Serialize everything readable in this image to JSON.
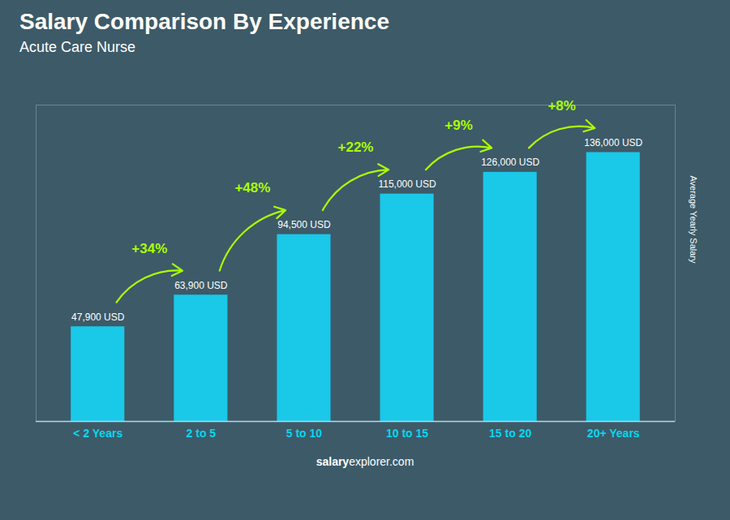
{
  "chart_data": {
    "type": "bar",
    "title": "Salary Comparison By Experience",
    "subtitle": "Acute Care Nurse",
    "categories": [
      "< 2 Years",
      "2 to 5",
      "5 to 10",
      "10 to 15",
      "15 to 20",
      "20+ Years"
    ],
    "values": [
      47900,
      63900,
      94500,
      115000,
      126000,
      136000
    ],
    "value_labels": [
      "47,900 USD",
      "63,900 USD",
      "94,500 USD",
      "115,000 USD",
      "126,000 USD",
      "136,000 USD"
    ],
    "data_labels": true,
    "annotations": [
      "+34%",
      "+48%",
      "+22%",
      "+9%",
      "+8%"
    ],
    "ylabel": "Average Yearly Salary",
    "caption": [
      "salary",
      "explorer.com"
    ],
    "color": "#1ac8e8",
    "ylim": [
      0,
      160000
    ],
    "tick_labels": "x",
    "grid": false
  }
}
